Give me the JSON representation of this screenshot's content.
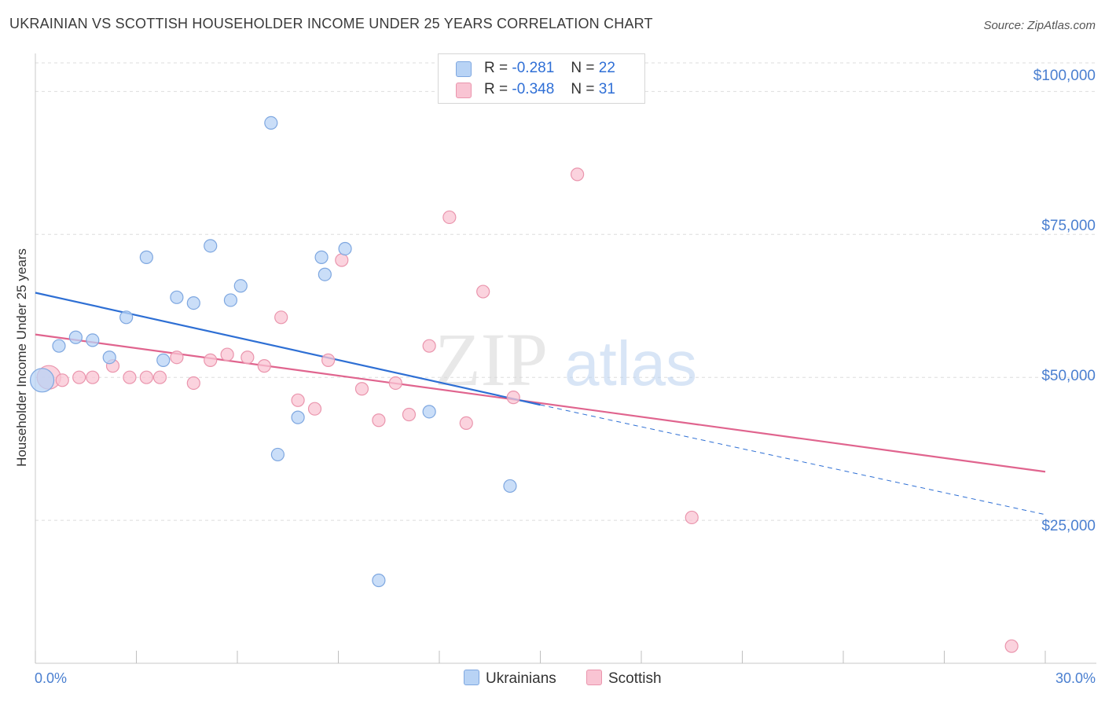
{
  "header": {
    "title": "UKRAINIAN VS SCOTTISH HOUSEHOLDER INCOME UNDER 25 YEARS CORRELATION CHART",
    "source": "Source: ZipAtlas.com"
  },
  "legend": {
    "rows": [
      {
        "r_label": "R =",
        "r_value": "-0.281",
        "n_label": "N =",
        "n_value": "22"
      },
      {
        "r_label": "R =",
        "r_value": "-0.348",
        "n_label": "N =",
        "n_value": "31"
      }
    ]
  },
  "bottom_legend": [
    "Ukrainians",
    "Scottish"
  ],
  "colors": {
    "ukrainians_fill": "#b8d3f5",
    "ukrainians_stroke": "#7ea7e0",
    "ukrainians_line": "#2e6fd4",
    "scottish_fill": "#f9c4d3",
    "scottish_stroke": "#ea95ad",
    "scottish_line": "#e0648e",
    "axis_text": "#4a7fd0",
    "grid": "#dddddd"
  },
  "watermark": {
    "zip": "ZIP",
    "atlas": "atlas"
  },
  "chart_data": {
    "type": "scatter",
    "title": "UKRAINIAN VS SCOTTISH HOUSEHOLDER INCOME UNDER 25 YEARS CORRELATION CHART",
    "xlabel": "",
    "ylabel": "Householder Income Under 25 years",
    "xlim": [
      0,
      30
    ],
    "ylim": [
      0,
      105000
    ],
    "x_tick_labels": [
      "0.0%",
      "30.0%"
    ],
    "y_ticks": [
      25000,
      50000,
      75000,
      100000
    ],
    "y_tick_labels": [
      "$25,000",
      "$50,000",
      "$75,000",
      "$100,000"
    ],
    "grid": true,
    "legend_position": "top-center",
    "series": [
      {
        "name": "Ukrainians",
        "points": [
          {
            "x": 0.2,
            "y": 49500,
            "size": "large"
          },
          {
            "x": 0.7,
            "y": 55500
          },
          {
            "x": 1.2,
            "y": 57000
          },
          {
            "x": 1.7,
            "y": 56500
          },
          {
            "x": 2.2,
            "y": 53500
          },
          {
            "x": 2.7,
            "y": 60500
          },
          {
            "x": 3.3,
            "y": 71000
          },
          {
            "x": 3.8,
            "y": 53000
          },
          {
            "x": 4.2,
            "y": 64000
          },
          {
            "x": 4.7,
            "y": 63000
          },
          {
            "x": 5.2,
            "y": 73000
          },
          {
            "x": 5.8,
            "y": 63500
          },
          {
            "x": 6.1,
            "y": 66000
          },
          {
            "x": 7.0,
            "y": 94500
          },
          {
            "x": 7.2,
            "y": 36500
          },
          {
            "x": 7.8,
            "y": 43000
          },
          {
            "x": 8.5,
            "y": 71000
          },
          {
            "x": 8.6,
            "y": 68000
          },
          {
            "x": 9.2,
            "y": 72500
          },
          {
            "x": 10.2,
            "y": 14500
          },
          {
            "x": 11.7,
            "y": 44000
          },
          {
            "x": 14.1,
            "y": 31000
          }
        ],
        "trend": {
          "x1": 0,
          "y1": 64800,
          "x2": 15,
          "y2": 45200
        },
        "trend_extension": {
          "x1": 15,
          "y1": 45200,
          "x2": 30,
          "y2": 26000
        }
      },
      {
        "name": "Scottish",
        "points": [
          {
            "x": 0.4,
            "y": 50000,
            "size": "large"
          },
          {
            "x": 0.8,
            "y": 49500
          },
          {
            "x": 1.3,
            "y": 50000
          },
          {
            "x": 1.7,
            "y": 50000
          },
          {
            "x": 2.3,
            "y": 52000
          },
          {
            "x": 2.8,
            "y": 50000
          },
          {
            "x": 3.3,
            "y": 50000
          },
          {
            "x": 3.7,
            "y": 50000
          },
          {
            "x": 4.2,
            "y": 53500
          },
          {
            "x": 4.7,
            "y": 49000
          },
          {
            "x": 5.2,
            "y": 53000
          },
          {
            "x": 5.7,
            "y": 54000
          },
          {
            "x": 6.3,
            "y": 53500
          },
          {
            "x": 6.8,
            "y": 52000
          },
          {
            "x": 7.3,
            "y": 60500
          },
          {
            "x": 7.8,
            "y": 46000
          },
          {
            "x": 8.3,
            "y": 44500
          },
          {
            "x": 8.7,
            "y": 53000
          },
          {
            "x": 9.1,
            "y": 70500
          },
          {
            "x": 9.7,
            "y": 48000
          },
          {
            "x": 10.2,
            "y": 42500
          },
          {
            "x": 10.7,
            "y": 49000
          },
          {
            "x": 11.1,
            "y": 43500
          },
          {
            "x": 11.7,
            "y": 55500
          },
          {
            "x": 12.3,
            "y": 78000
          },
          {
            "x": 12.8,
            "y": 42000
          },
          {
            "x": 13.3,
            "y": 65000
          },
          {
            "x": 14.2,
            "y": 46500
          },
          {
            "x": 16.1,
            "y": 85500
          },
          {
            "x": 19.5,
            "y": 25500
          },
          {
            "x": 29.0,
            "y": 3000
          }
        ],
        "trend": {
          "x1": 0,
          "y1": 57500,
          "x2": 30,
          "y2": 33500
        }
      }
    ]
  }
}
